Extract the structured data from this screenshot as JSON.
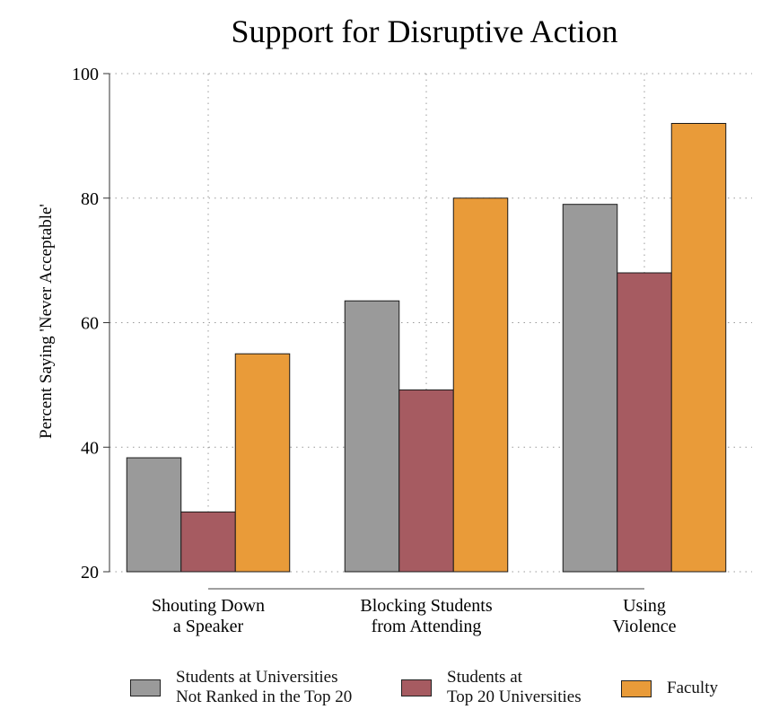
{
  "chart_data": {
    "type": "bar",
    "title": "Support for Disruptive Action",
    "ylabel": "Percent Saying 'Never Acceptable'",
    "xlabel": "",
    "ylim": [
      20,
      100
    ],
    "yticks": [
      20,
      40,
      60,
      80,
      100
    ],
    "grid": true,
    "categories": [
      [
        "Shouting Down",
        "a Speaker"
      ],
      [
        "Blocking Students",
        "from Attending"
      ],
      [
        "Using",
        "Violence"
      ]
    ],
    "series": [
      {
        "name": "Students at Universities\nNot Ranked in the Top 20",
        "color": "#9a9a9a",
        "values": [
          38.3,
          63.5,
          79
        ]
      },
      {
        "name": "Students at\nTop 20 Universities",
        "color": "#a65b61",
        "values": [
          29.6,
          49.2,
          68
        ]
      },
      {
        "name": "Faculty",
        "color": "#e99b39",
        "values": [
          55,
          80,
          92
        ]
      }
    ]
  }
}
